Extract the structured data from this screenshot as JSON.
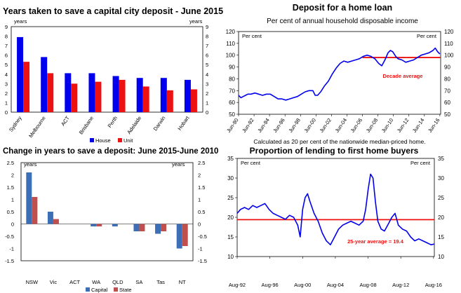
{
  "chart_data": [
    {
      "type": "bar",
      "title": "Years taken to save a capital city deposit - June 2015",
      "ylabel": "years",
      "ylabel_right": "years",
      "ylim": [
        0,
        9
      ],
      "yticks": [
        0,
        1,
        2,
        3,
        4,
        5,
        6,
        7,
        8,
        9
      ],
      "categories": [
        "Sydney",
        "Melbourne",
        "ACT",
        "Brisbane",
        "Perth",
        "Adelaide",
        "Darwin",
        "Hobart"
      ],
      "series": [
        {
          "name": "House",
          "color": "#0000ee",
          "values": [
            7.9,
            5.8,
            4.1,
            4.1,
            3.8,
            3.6,
            3.6,
            3.4
          ]
        },
        {
          "name": "Unit",
          "color": "#ee1111",
          "values": [
            5.3,
            4.1,
            3.0,
            3.2,
            3.4,
            2.7,
            2.3,
            2.4
          ]
        }
      ],
      "grid": false,
      "legend": "bottom"
    },
    {
      "type": "line",
      "title": "Deposit for a home loan",
      "subtitle": "Per cent of annual household disposable income",
      "ylabel": "Per cent",
      "ylim": [
        50,
        120
      ],
      "yticks": [
        50,
        60,
        70,
        80,
        90,
        100,
        110,
        120
      ],
      "xticks": [
        "Jun-90",
        "Jun-92",
        "Jun-94",
        "Jun-96",
        "Jun-98",
        "Jun-00",
        "Jun-02",
        "Jun-04",
        "Jun-06",
        "Jun-08",
        "Jun-10",
        "Jun-12",
        "Jun-14",
        "Jun-16"
      ],
      "xrange": [
        1990.4,
        2016.5
      ],
      "series": [
        {
          "name": "",
          "color": "#0000ee",
          "points": [
            [
              1990.4,
              66
            ],
            [
              1990.7,
              64
            ],
            [
              1991.0,
              65
            ],
            [
              1991.3,
              66
            ],
            [
              1991.6,
              67
            ],
            [
              1992.0,
              67
            ],
            [
              1992.5,
              68
            ],
            [
              1993.0,
              67
            ],
            [
              1993.5,
              66
            ],
            [
              1994.0,
              67
            ],
            [
              1994.5,
              67
            ],
            [
              1995.0,
              65
            ],
            [
              1995.5,
              63
            ],
            [
              1996.0,
              63
            ],
            [
              1996.5,
              62
            ],
            [
              1997.0,
              63
            ],
            [
              1997.5,
              64
            ],
            [
              1998.0,
              65
            ],
            [
              1998.5,
              67
            ],
            [
              1999.0,
              69
            ],
            [
              1999.5,
              70
            ],
            [
              2000.0,
              70
            ],
            [
              2000.3,
              66
            ],
            [
              2000.6,
              66
            ],
            [
              2001.0,
              69
            ],
            [
              2001.5,
              74
            ],
            [
              2002.0,
              78
            ],
            [
              2002.5,
              84
            ],
            [
              2003.0,
              89
            ],
            [
              2003.5,
              93
            ],
            [
              2004.0,
              95
            ],
            [
              2004.5,
              94
            ],
            [
              2005.0,
              95
            ],
            [
              2005.5,
              96
            ],
            [
              2006.0,
              97
            ],
            [
              2006.5,
              99
            ],
            [
              2007.0,
              100
            ],
            [
              2007.5,
              99
            ],
            [
              2008.0,
              97
            ],
            [
              2008.5,
              93
            ],
            [
              2008.9,
              91
            ],
            [
              2009.3,
              96
            ],
            [
              2009.7,
              102
            ],
            [
              2010.0,
              104
            ],
            [
              2010.3,
              103
            ],
            [
              2010.7,
              99
            ],
            [
              2011.0,
              97
            ],
            [
              2011.5,
              96
            ],
            [
              2012.0,
              94
            ],
            [
              2012.5,
              95
            ],
            [
              2013.0,
              96
            ],
            [
              2013.5,
              98
            ],
            [
              2014.0,
              100
            ],
            [
              2014.5,
              101
            ],
            [
              2015.0,
              102
            ],
            [
              2015.5,
              104
            ],
            [
              2015.8,
              106
            ],
            [
              2016.1,
              103
            ],
            [
              2016.4,
              101
            ]
          ]
        }
      ],
      "reference_lines": [
        {
          "label": "Decade average",
          "value": 98,
          "x_from": 2006.4,
          "x_to": 2016.5,
          "color": "#ee1111"
        }
      ],
      "annotation": "Calculated as 20 per cent of the nationwide median-priced home."
    },
    {
      "type": "bar",
      "title": "Change in years to save a deposit: June 2015-June 2010",
      "ylabel": "years",
      "ylabel_right": "years",
      "ylim": [
        -1.5,
        2.5
      ],
      "yticks": [
        -1.5,
        -1,
        -0.5,
        0,
        0.5,
        1,
        1.5,
        2,
        2.5
      ],
      "ytick_labels": [
        "-1.5",
        "-1",
        "-0.5",
        "0",
        "0.5",
        "1",
        "1.5",
        "2",
        "2.5"
      ],
      "categories": [
        "NSW",
        "Vic",
        "ACT",
        "WA",
        "QLD",
        "SA",
        "Tas",
        "NT"
      ],
      "series": [
        {
          "name": "Capital",
          "color": "#3d6fb6",
          "values": [
            2.1,
            0.5,
            0.0,
            -0.1,
            -0.1,
            -0.3,
            -0.4,
            -1.0
          ]
        },
        {
          "name": "State",
          "color": "#c0504d",
          "values": [
            1.1,
            0.2,
            0.0,
            -0.1,
            0.0,
            -0.3,
            -0.3,
            -0.9
          ]
        }
      ],
      "grid": false,
      "legend": "bottom"
    },
    {
      "type": "line",
      "title": "Proportion of lending to first home buyers",
      "ylabel": "Per cent",
      "ylim": [
        10,
        35
      ],
      "yticks": [
        10,
        15,
        20,
        25,
        30,
        35
      ],
      "xticks": [
        "Aug-92",
        "Aug-96",
        "Aug-00",
        "Aug-04",
        "Aug-08",
        "Aug-12",
        "Aug-16"
      ],
      "xrange": [
        1992.6,
        2016.7
      ],
      "series": [
        {
          "name": "",
          "color": "#0000ee",
          "points": [
            [
              1992.6,
              21
            ],
            [
              1993.0,
              22
            ],
            [
              1993.5,
              22.5
            ],
            [
              1994.0,
              22
            ],
            [
              1994.5,
              23
            ],
            [
              1995.0,
              22.5
            ],
            [
              1995.5,
              23
            ],
            [
              1996.0,
              23.5
            ],
            [
              1996.5,
              22
            ],
            [
              1997.0,
              21
            ],
            [
              1997.5,
              20.5
            ],
            [
              1998.0,
              20
            ],
            [
              1998.5,
              19.5
            ],
            [
              1999.0,
              20.5
            ],
            [
              1999.5,
              20
            ],
            [
              2000.0,
              18
            ],
            [
              2000.3,
              15
            ],
            [
              2000.6,
              22
            ],
            [
              2000.9,
              25
            ],
            [
              2001.2,
              26
            ],
            [
              2001.5,
              24
            ],
            [
              2002.0,
              21
            ],
            [
              2002.5,
              19
            ],
            [
              2003.0,
              16
            ],
            [
              2003.5,
              14
            ],
            [
              2004.0,
              13
            ],
            [
              2004.5,
              15
            ],
            [
              2005.0,
              17
            ],
            [
              2005.5,
              18
            ],
            [
              2006.0,
              18.5
            ],
            [
              2006.5,
              19
            ],
            [
              2007.0,
              18.5
            ],
            [
              2007.5,
              18
            ],
            [
              2008.0,
              19
            ],
            [
              2008.3,
              22
            ],
            [
              2008.6,
              27
            ],
            [
              2008.9,
              31
            ],
            [
              2009.2,
              30
            ],
            [
              2009.5,
              24
            ],
            [
              2009.8,
              19
            ],
            [
              2010.2,
              17
            ],
            [
              2010.6,
              16.5
            ],
            [
              2011.0,
              18
            ],
            [
              2011.5,
              20
            ],
            [
              2011.9,
              21
            ],
            [
              2012.3,
              18
            ],
            [
              2012.8,
              17
            ],
            [
              2013.3,
              16.5
            ],
            [
              2013.8,
              15
            ],
            [
              2014.3,
              14
            ],
            [
              2014.8,
              14.5
            ],
            [
              2015.3,
              14
            ],
            [
              2015.8,
              13.5
            ],
            [
              2016.3,
              13
            ],
            [
              2016.7,
              13.2
            ]
          ]
        }
      ],
      "reference_lines": [
        {
          "label": "25-year average = 19.4",
          "value": 19.4,
          "x_from": 1992.6,
          "x_to": 2016.7,
          "color": "#ee1111"
        }
      ]
    }
  ]
}
